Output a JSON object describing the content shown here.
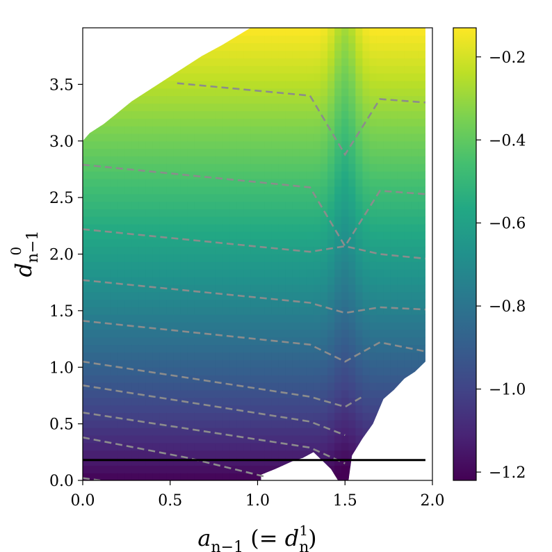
{
  "chart_data": {
    "type": "heatmap",
    "title": "",
    "xlabel": "a_{n−1} (= d_n^1)",
    "xlabel_parts": {
      "main": "a",
      "main_sub": "n−1",
      "open": " (= ",
      "d": "d",
      "d_sub": "n",
      "d_sup": "1",
      "close": ")"
    },
    "ylabel": "d_{n−1}^0",
    "ylabel_parts": {
      "main": "d",
      "sub": "n−1",
      "sup": "0"
    },
    "xlim": [
      0.0,
      2.0
    ],
    "ylim": [
      0.0,
      4.0
    ],
    "xticks": [
      0.0,
      0.5,
      1.0,
      1.5,
      2.0
    ],
    "xtick_labels": [
      "0.0",
      "0.5",
      "1.0",
      "1.5",
      "2.0"
    ],
    "yticks": [
      0.0,
      0.5,
      1.0,
      1.5,
      2.0,
      2.5,
      3.0,
      3.5
    ],
    "ytick_labels": [
      "0.0",
      "0.5",
      "1.0",
      "1.5",
      "2.0",
      "2.5",
      "3.0",
      "3.5"
    ],
    "colormap": "viridis",
    "colorbar": {
      "min": -1.22,
      "max": -0.13,
      "ticks": [
        -0.2,
        -0.4,
        -0.6,
        -0.8,
        -1.0,
        -1.2
      ],
      "tick_labels": [
        "−0.2",
        "−0.4",
        "−0.6",
        "−0.8",
        "−1.0",
        "−1.2"
      ]
    },
    "grid": false,
    "value_model": {
      "description": "Color value approx -1.22 at bottom rising to -0.13 at top, with a dip near a=1.5",
      "v_min": -1.22,
      "v_max": -0.13,
      "dip_center_x": 1.5,
      "dip_depth": 0.15
    },
    "data_region_boundary": {
      "left_top": [
        [
          0.0,
          3.0
        ],
        [
          0.04,
          3.07
        ],
        [
          0.12,
          3.15
        ],
        [
          0.2,
          3.25
        ],
        [
          0.28,
          3.35
        ],
        [
          0.38,
          3.45
        ],
        [
          0.48,
          3.55
        ],
        [
          0.58,
          3.65
        ],
        [
          0.68,
          3.75
        ],
        [
          0.8,
          3.85
        ],
        [
          0.96,
          4.0
        ]
      ],
      "bottom": [
        [
          0.0,
          0.0
        ],
        [
          1.02,
          0.0
        ],
        [
          1.02,
          0.05
        ],
        [
          1.1,
          0.1
        ],
        [
          1.2,
          0.17
        ],
        [
          1.26,
          0.2
        ],
        [
          1.32,
          0.25
        ],
        [
          1.42,
          0.1
        ],
        [
          1.46,
          0.0
        ],
        [
          1.52,
          0.0
        ],
        [
          1.54,
          0.22
        ],
        [
          1.6,
          0.37
        ],
        [
          1.66,
          0.5
        ],
        [
          1.72,
          0.72
        ],
        [
          1.78,
          0.8
        ],
        [
          1.84,
          0.9
        ],
        [
          1.9,
          0.96
        ],
        [
          1.96,
          1.05
        ],
        [
          1.96,
          4.0
        ]
      ]
    },
    "contours": [
      {
        "level": 1,
        "points": [
          [
            0.0,
            0.02
          ],
          [
            0.1,
            0.0
          ]
        ]
      },
      {
        "level": 2,
        "points": [
          [
            0.0,
            0.38
          ],
          [
            0.6,
            0.2
          ],
          [
            1.05,
            0.03
          ]
        ]
      },
      {
        "level": 3,
        "points": [
          [
            0.0,
            0.6
          ],
          [
            1.3,
            0.29
          ],
          [
            1.5,
            0.15
          ]
        ]
      },
      {
        "level": 4,
        "points": [
          [
            0.0,
            0.84
          ],
          [
            1.3,
            0.52
          ],
          [
            1.5,
            0.4
          ]
        ]
      },
      {
        "level": 5,
        "points": [
          [
            0.0,
            1.05
          ],
          [
            1.3,
            0.74
          ],
          [
            1.5,
            0.65
          ],
          [
            1.6,
            0.74
          ]
        ]
      },
      {
        "level": 6,
        "points": [
          [
            0.0,
            1.41
          ],
          [
            1.3,
            1.2
          ],
          [
            1.5,
            1.05
          ],
          [
            1.7,
            1.22
          ],
          [
            1.96,
            1.14
          ]
        ]
      },
      {
        "level": 7,
        "points": [
          [
            0.0,
            1.77
          ],
          [
            1.3,
            1.57
          ],
          [
            1.5,
            1.48
          ],
          [
            1.7,
            1.53
          ],
          [
            1.96,
            1.51
          ]
        ]
      },
      {
        "level": 8,
        "points": [
          [
            0.0,
            2.22
          ],
          [
            1.3,
            2.02
          ],
          [
            1.5,
            2.07
          ],
          [
            1.7,
            2.0
          ],
          [
            1.96,
            1.96
          ]
        ]
      },
      {
        "level": 9,
        "points": [
          [
            0.0,
            2.79
          ],
          [
            1.3,
            2.59
          ],
          [
            1.5,
            2.07
          ],
          [
            1.7,
            2.56
          ],
          [
            1.96,
            2.53
          ]
        ]
      },
      {
        "level": 10,
        "points": [
          [
            0.54,
            3.51
          ],
          [
            1.3,
            3.4
          ],
          [
            1.5,
            2.88
          ],
          [
            1.7,
            3.37
          ],
          [
            1.96,
            3.34
          ]
        ]
      }
    ],
    "reference_line": {
      "y": 0.18,
      "x_start": 0.0,
      "x_end": 1.96,
      "color": "#000000"
    }
  }
}
